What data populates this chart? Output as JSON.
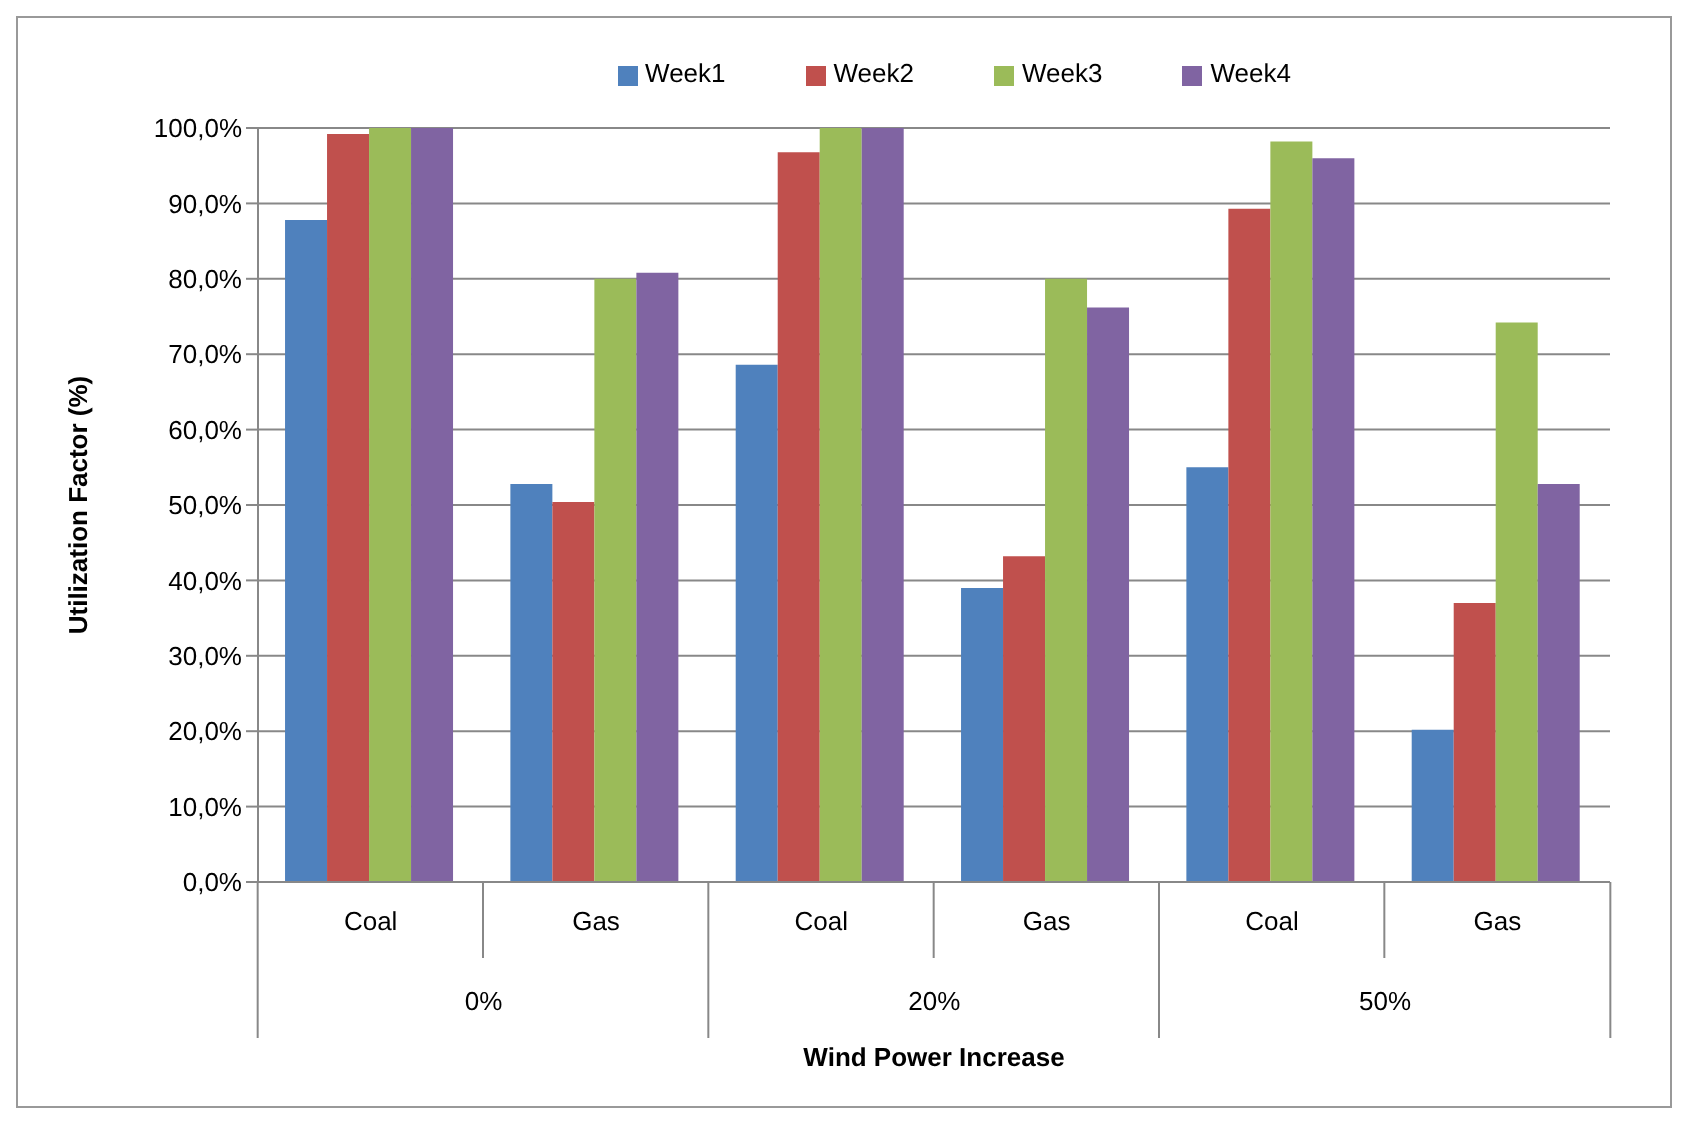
{
  "chart_data": {
    "type": "bar",
    "xlabel": "Wind Power Increase",
    "ylabel": "Utilization Factor (%)",
    "categories": [
      "Coal",
      "Gas",
      "Coal",
      "Gas",
      "Coal",
      "Gas"
    ],
    "annotations": [
      "0%",
      "20%",
      "50%"
    ],
    "series": [
      {
        "name": "Week1",
        "color": "#4f81bd",
        "values": [
          87.8,
          52.8,
          68.6,
          39.0,
          55.0,
          20.2
        ]
      },
      {
        "name": "Week2",
        "color": "#c0504d",
        "values": [
          99.2,
          50.4,
          96.8,
          43.2,
          89.3,
          37.0
        ]
      },
      {
        "name": "Week3",
        "color": "#9bbb59",
        "values": [
          100,
          80.0,
          100,
          80.0,
          98.2,
          74.2
        ]
      },
      {
        "name": "Week4",
        "color": "#8064a2",
        "values": [
          100,
          80.8,
          100,
          76.2,
          96.0,
          52.8
        ]
      }
    ],
    "ylim": [
      0,
      100
    ],
    "yticks": [
      {
        "value": 0,
        "label": "0,0%"
      },
      {
        "value": 10,
        "label": "10,0%"
      },
      {
        "value": 20,
        "label": "20,0%"
      },
      {
        "value": 30,
        "label": "30,0%"
      },
      {
        "value": 40,
        "label": "40,0%"
      },
      {
        "value": 50,
        "label": "50,0%"
      },
      {
        "value": 60,
        "label": "60,0%"
      },
      {
        "value": 70,
        "label": "70,0%"
      },
      {
        "value": 80,
        "label": "80,0%"
      },
      {
        "value": 90,
        "label": "90,0%"
      },
      {
        "value": 100,
        "label": "100,0%"
      }
    ],
    "grid": "y",
    "legend": "top"
  }
}
